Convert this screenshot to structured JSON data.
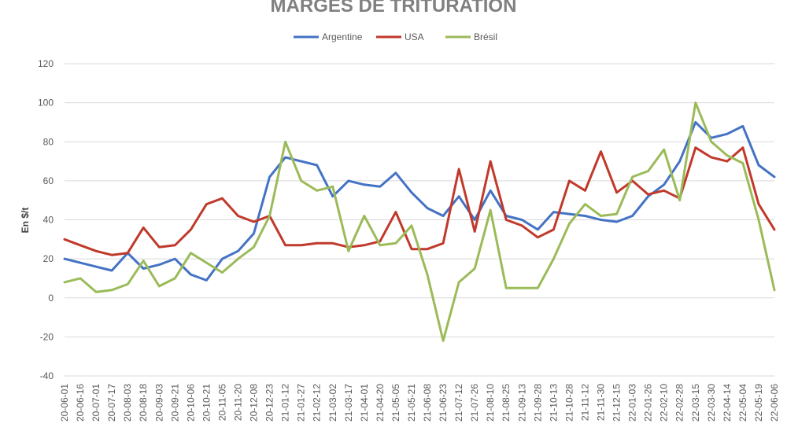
{
  "chart_data": {
    "type": "line",
    "title": "MARGES DE TRITURATION",
    "ylabel": "En $/t",
    "xlabel": "",
    "ylim": [
      -40,
      120
    ],
    "yticks": [
      -40,
      -20,
      0,
      20,
      40,
      60,
      80,
      100,
      120
    ],
    "grid": true,
    "legend_position": "top",
    "x": [
      "20-06-01",
      "20-06-16",
      "20-07-01",
      "20-07-17",
      "20-08-03",
      "20-08-18",
      "20-09-03",
      "20-09-21",
      "20-10-06",
      "20-10-21",
      "20-11-05",
      "20-11-20",
      "20-12-08",
      "20-12-23",
      "21-01-12",
      "21-01-27",
      "21-02-12",
      "21-03-02",
      "21-03-17",
      "21-04-01",
      "21-04-20",
      "21-05-05",
      "21-05-21",
      "21-06-08",
      "21-06-23",
      "21-07-12",
      "21-07-26",
      "21-08-10",
      "21-08-25",
      "21-09-13",
      "21-09-28",
      "21-10-13",
      "21-10-28",
      "21-11-12",
      "21-11-30",
      "21-12-15",
      "22-01-03",
      "22-01-26",
      "22-02-10",
      "22-02-28",
      "22-03-15",
      "22-03-30",
      "22-04-14",
      "22-05-04",
      "22-05-19",
      "22-06-06"
    ],
    "series": [
      {
        "name": "Argentine",
        "color": "#4472c4",
        "values": [
          20,
          18,
          16,
          14,
          23,
          15,
          17,
          20,
          12,
          9,
          20,
          24,
          33,
          62,
          72,
          70,
          68,
          52,
          60,
          58,
          57,
          64,
          54,
          46,
          42,
          52,
          40,
          55,
          42,
          40,
          35,
          44,
          43,
          42,
          40,
          39,
          42,
          52,
          58,
          70,
          90,
          82,
          84,
          88,
          68,
          62
        ]
      },
      {
        "name": "USA",
        "color": "#c0392b",
        "values": [
          30,
          27,
          24,
          22,
          23,
          36,
          26,
          27,
          35,
          48,
          51,
          42,
          39,
          42,
          27,
          27,
          28,
          28,
          26,
          27,
          29,
          44,
          25,
          25,
          28,
          66,
          34,
          70,
          40,
          37,
          31,
          35,
          60,
          55,
          75,
          54,
          60,
          53,
          55,
          51,
          77,
          72,
          70,
          77,
          48,
          35
        ]
      },
      {
        "name": "Brésil",
        "color": "#9bbb59",
        "values": [
          8,
          10,
          3,
          4,
          7,
          19,
          6,
          10,
          23,
          18,
          13,
          20,
          26,
          42,
          80,
          60,
          55,
          57,
          24,
          42,
          27,
          28,
          37,
          12,
          -22,
          8,
          15,
          45,
          5,
          5,
          5,
          20,
          38,
          48,
          42,
          43,
          62,
          65,
          76,
          50,
          100,
          80,
          73,
          69,
          40,
          4
        ]
      }
    ]
  }
}
